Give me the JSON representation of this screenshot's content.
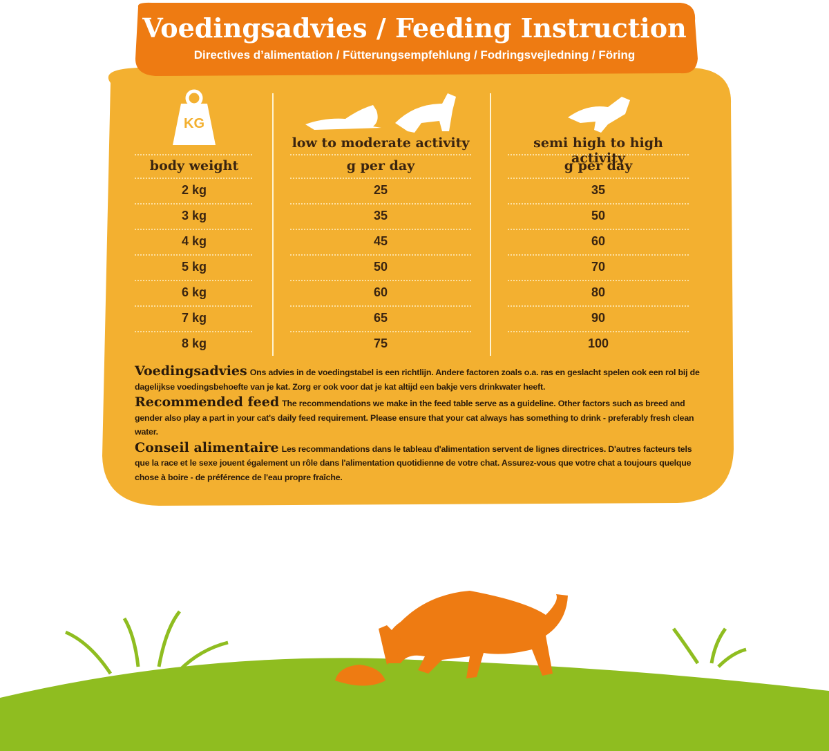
{
  "header": {
    "title": "Voedingsadvies / Feeding Instruction",
    "subtitle": "Directives d’alimentation / Fütterungsempfehlung / Fodringsvejledning / Föring"
  },
  "table": {
    "columns": [
      {
        "label": "body weight"
      },
      {
        "activity": "low to moderate activity",
        "label": "g per day"
      },
      {
        "activity": "semi high to high activity",
        "label": "g per day"
      }
    ],
    "rows": [
      [
        "2 kg",
        "25",
        "35"
      ],
      [
        "3 kg",
        "35",
        "50"
      ],
      [
        "4 kg",
        "45",
        "60"
      ],
      [
        "5 kg",
        "50",
        "70"
      ],
      [
        "6 kg",
        "60",
        "80"
      ],
      [
        "7 kg",
        "65",
        "90"
      ],
      [
        "8 kg",
        "75",
        "100"
      ]
    ]
  },
  "icons": {
    "weight": "KG"
  },
  "notes": [
    {
      "heading": "Voedingsadvies",
      "text": "Ons advies in de voedingstabel is een richtlijn. Andere factoren zoals o.a. ras en geslacht spelen ook een rol bij de dagelijkse voedingsbehoefte van je kat. Zorg er ook voor dat je kat altijd een bakje vers drinkwater heeft."
    },
    {
      "heading": "Recommended feed",
      "text": "The recommendations we make in the feed table serve as a guideline. Other factors such as breed and gender also play a part in your cat's daily feed requirement. Please ensure that your cat always has something to drink - preferably fresh clean water."
    },
    {
      "heading": "Conseil alimentaire",
      "text": "Les recommandations dans le tableau d'alimentation servent de lignes directrices. D'autres facteurs tels que la race et le sexe jouent également un rôle dans l'alimentation quotidienne de votre chat. Assurez-vous que votre chat a toujours quelque chose à boire - de préférence de l'eau propre fraîche."
    }
  ]
}
